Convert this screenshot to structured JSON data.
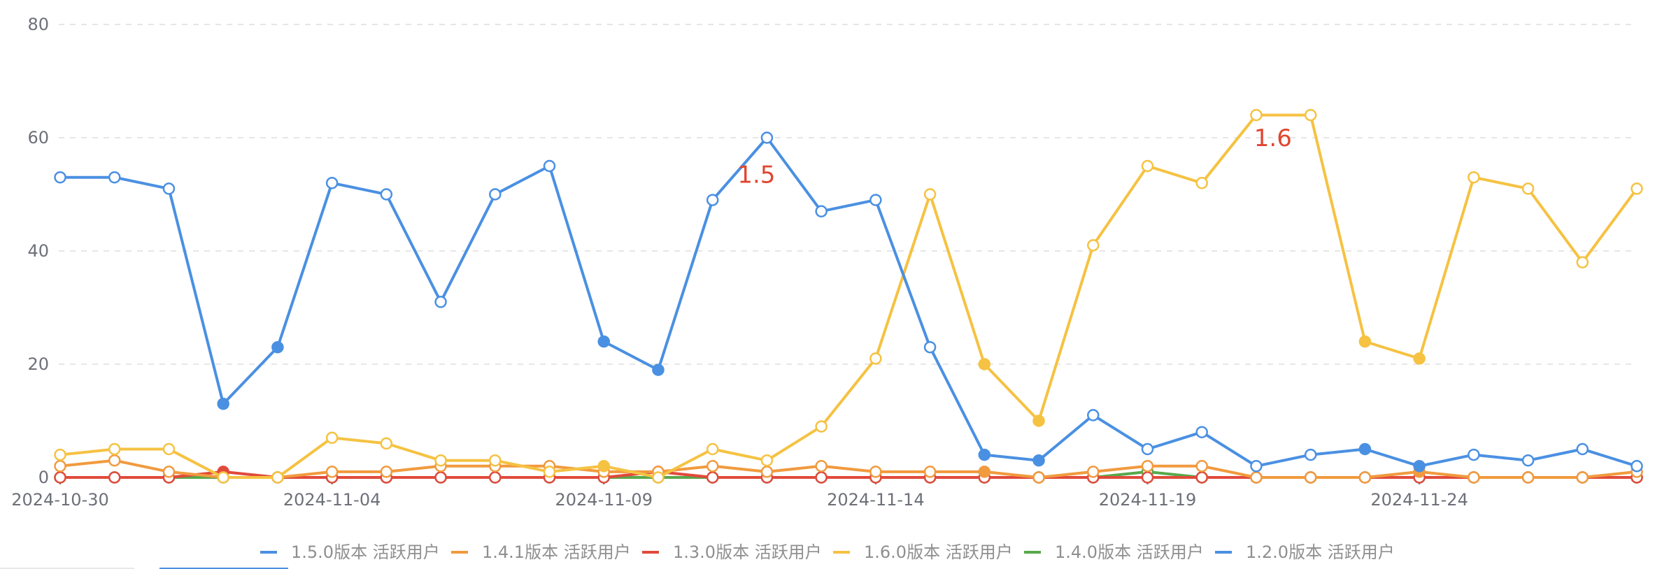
{
  "chart_data": {
    "type": "line",
    "x": [
      "2024-10-30",
      "2024-10-31",
      "2024-11-01",
      "2024-11-02",
      "2024-11-03",
      "2024-11-04",
      "2024-11-05",
      "2024-11-06",
      "2024-11-07",
      "2024-11-08",
      "2024-11-09",
      "2024-11-10",
      "2024-11-11",
      "2024-11-12",
      "2024-11-13",
      "2024-11-14",
      "2024-11-15",
      "2024-11-16",
      "2024-11-17",
      "2024-11-18",
      "2024-11-19",
      "2024-11-20",
      "2024-11-21",
      "2024-11-22",
      "2024-11-23",
      "2024-11-24",
      "2024-11-25",
      "2024-11-26",
      "2024-11-27",
      "2024-11-28"
    ],
    "x_tick_labels": [
      "2024-10-30",
      "2024-11-04",
      "2024-11-09",
      "2024-11-14",
      "2024-11-19",
      "2024-11-24"
    ],
    "y_ticks": [
      0,
      20,
      40,
      60,
      80
    ],
    "ylim": [
      0,
      80
    ],
    "grid": "horizontal-dashed",
    "legend_position": "bottom",
    "series": [
      {
        "name": "1.5.0版本 活跃用户",
        "color": "#4a90e2",
        "values": [
          53,
          53,
          51,
          13,
          23,
          52,
          50,
          31,
          50,
          55,
          24,
          19,
          49,
          60,
          47,
          49,
          23,
          4,
          3,
          11,
          5,
          8,
          2,
          4,
          5,
          2,
          4,
          3,
          5,
          2
        ],
        "filled": [
          false,
          false,
          false,
          true,
          true,
          false,
          false,
          false,
          false,
          false,
          true,
          true,
          false,
          false,
          false,
          false,
          false,
          true,
          true,
          false,
          false,
          false,
          false,
          false,
          true,
          true,
          false,
          false,
          false,
          false
        ]
      },
      {
        "name": "1.4.1版本 活跃用户",
        "color": "#f19a3e",
        "values": [
          2,
          3,
          1,
          0,
          0,
          1,
          1,
          2,
          2,
          2,
          1,
          1,
          2,
          1,
          2,
          1,
          1,
          1,
          0,
          1,
          2,
          2,
          0,
          0,
          0,
          1,
          0,
          0,
          0,
          1
        ],
        "filled": [
          false,
          false,
          false,
          false,
          false,
          false,
          false,
          false,
          false,
          false,
          false,
          false,
          false,
          false,
          false,
          false,
          false,
          true,
          false,
          false,
          false,
          false,
          false,
          false,
          false,
          true,
          false,
          false,
          false,
          false
        ]
      },
      {
        "name": "1.3.0版本 活跃用户",
        "color": "#e14a3b",
        "values": [
          0,
          0,
          0,
          1,
          0,
          0,
          0,
          0,
          0,
          0,
          0,
          1,
          0,
          0,
          0,
          0,
          0,
          0,
          0,
          0,
          0,
          0,
          0,
          0,
          0,
          0,
          0,
          0,
          0,
          0
        ],
        "filled": [
          false,
          false,
          false,
          true,
          false,
          false,
          false,
          false,
          false,
          false,
          false,
          true,
          false,
          false,
          false,
          false,
          false,
          false,
          false,
          false,
          false,
          false,
          false,
          false,
          false,
          false,
          false,
          false,
          false,
          false
        ]
      },
      {
        "name": "1.6.0版本 活跃用户",
        "color": "#f5c242",
        "values": [
          4,
          5,
          5,
          0,
          0,
          7,
          6,
          3,
          3,
          1,
          2,
          0,
          5,
          3,
          9,
          21,
          50,
          20,
          10,
          41,
          55,
          52,
          64,
          64,
          24,
          21,
          53,
          51,
          38,
          51
        ],
        "filled": [
          false,
          false,
          false,
          false,
          false,
          false,
          false,
          false,
          false,
          false,
          true,
          false,
          false,
          false,
          false,
          false,
          false,
          true,
          true,
          false,
          false,
          false,
          false,
          false,
          true,
          true,
          false,
          false,
          false,
          false
        ]
      },
      {
        "name": "1.4.0版本 活跃用户",
        "color": "#59a84b",
        "values": [
          0,
          0,
          0,
          0,
          0,
          0,
          0,
          0,
          0,
          0,
          0,
          0,
          0,
          0,
          0,
          0,
          0,
          0,
          0,
          0,
          1,
          0,
          0,
          0,
          0,
          0,
          0,
          0,
          0,
          0
        ],
        "filled": [
          false,
          false,
          false,
          false,
          false,
          false,
          false,
          false,
          false,
          false,
          false,
          false,
          false,
          false,
          false,
          false,
          false,
          false,
          false,
          false,
          false,
          false,
          false,
          false,
          false,
          false,
          false,
          false,
          false,
          false
        ]
      },
      {
        "name": "1.2.0版本 活跃用户",
        "color": "#4a90e2",
        "values": [
          0,
          0,
          0,
          0,
          0,
          0,
          0,
          0,
          0,
          0,
          0,
          0,
          0,
          0,
          0,
          0,
          0,
          0,
          0,
          0,
          0,
          0,
          0,
          0,
          0,
          0,
          0,
          0,
          0,
          0
        ],
        "filled": [
          false,
          false,
          false,
          true,
          true,
          false,
          false,
          false,
          false,
          false,
          true,
          true,
          false,
          false,
          false,
          false,
          false,
          true,
          true,
          false,
          false,
          false,
          false,
          false,
          true,
          true,
          false,
          false,
          false,
          false
        ]
      }
    ],
    "annotations": [
      {
        "text": "1.5",
        "x_index": 13,
        "y": 53.5,
        "color": "#e0452f"
      },
      {
        "text": "1.6",
        "x_index": 22.5,
        "y": 60,
        "color": "#e0452f"
      }
    ]
  }
}
